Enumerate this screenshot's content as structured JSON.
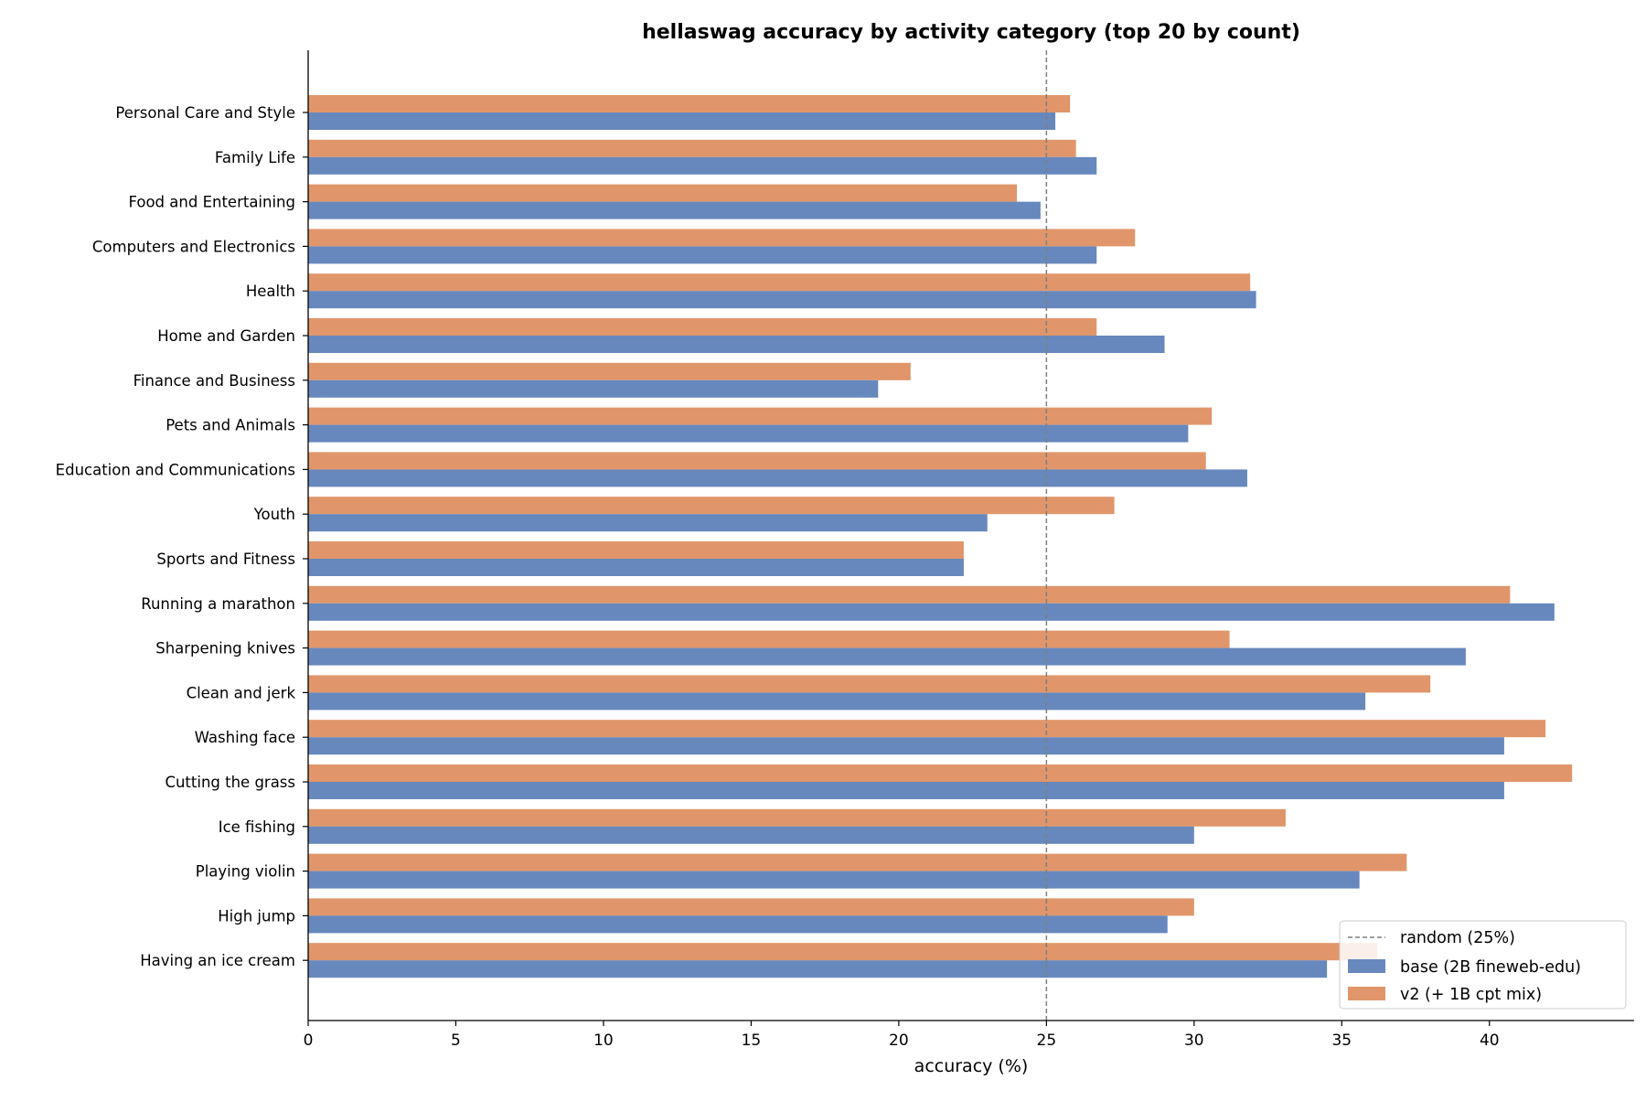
{
  "chart_data": {
    "type": "bar",
    "orientation": "horizontal",
    "title": "hellaswag accuracy by activity category (top 20 by count)",
    "xlabel": "accuracy (%)",
    "ylabel": "",
    "xlim": [
      0,
      44.9
    ],
    "xticks": [
      0,
      5,
      10,
      15,
      20,
      25,
      30,
      35,
      40
    ],
    "grid": false,
    "legend_position": "bottom-right",
    "reference_line": {
      "value": 25,
      "label": "random (25%)",
      "color": "#7f7f7f",
      "style": "dashed"
    },
    "categories": [
      "Personal Care and Style",
      "Family Life",
      "Food and Entertaining",
      "Computers and Electronics",
      "Health",
      "Home and Garden",
      "Finance and Business",
      "Pets and Animals",
      "Education and Communications",
      "Youth",
      "Sports and Fitness",
      "Running a marathon",
      "Sharpening knives",
      "Clean and jerk",
      "Washing face",
      "Cutting the grass",
      "Ice fishing",
      "Playing violin",
      "High jump",
      "Having an ice cream"
    ],
    "series": [
      {
        "name": "base (2B fineweb-edu)",
        "color": "#6788bd",
        "values": [
          25.3,
          26.7,
          24.8,
          26.7,
          32.1,
          29.0,
          19.3,
          29.8,
          31.8,
          23.0,
          22.2,
          42.2,
          39.2,
          35.8,
          40.5,
          40.5,
          30.0,
          35.6,
          29.1,
          34.5
        ]
      },
      {
        "name": "v2 (+ 1B cpt mix)",
        "color": "#e0966a",
        "values": [
          25.8,
          26.0,
          24.0,
          28.0,
          31.9,
          26.7,
          20.4,
          30.6,
          30.4,
          27.3,
          22.2,
          40.7,
          31.2,
          38.0,
          41.9,
          42.8,
          33.1,
          37.2,
          30.0,
          36.2
        ]
      }
    ]
  }
}
